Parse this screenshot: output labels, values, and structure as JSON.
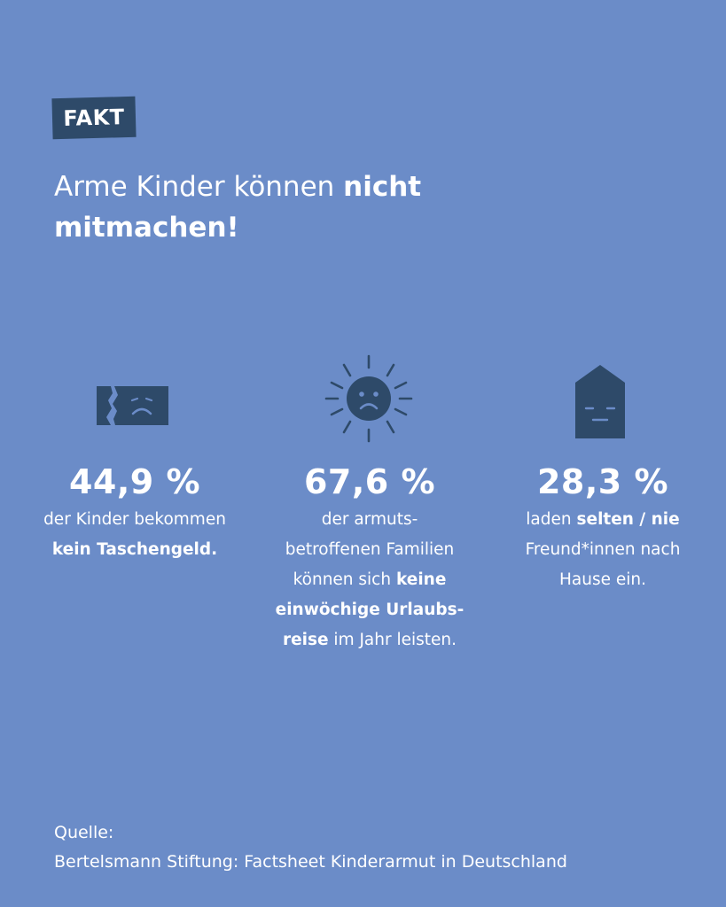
{
  "badge": "FAKT",
  "headline": {
    "part1": "Arme Kinder können ",
    "bold1": "nicht",
    "bold2": "mitmachen!"
  },
  "facts": [
    {
      "icon": "sad-wallet-icon",
      "percent": "44,9 %",
      "line1": "der Kinder bekommen",
      "line2_bold": "kein Taschengeld."
    },
    {
      "icon": "sad-sun-icon",
      "percent": "67,6 %",
      "line1": "der armuts-",
      "line2": "betroffenen Familien",
      "line3": "können sich ",
      "line3_bold": "keine",
      "line4_bold": "einwöchige Urlaubs-",
      "line5_bold": "reise",
      "line5": " im Jahr leisten."
    },
    {
      "icon": "sad-house-icon",
      "percent": "28,3 %",
      "line1": "laden ",
      "line1_bold": "selten / nie",
      "line2": "Freund*innen nach",
      "line3": "Hause ein."
    }
  ],
  "source": {
    "label": "Quelle:",
    "text": "Bertelsmann Stiftung: Factsheet Kinderarmut in Deutschland"
  },
  "colors": {
    "background": "#6b8cc8",
    "dark": "#2e4a69",
    "text": "#ffffff"
  }
}
